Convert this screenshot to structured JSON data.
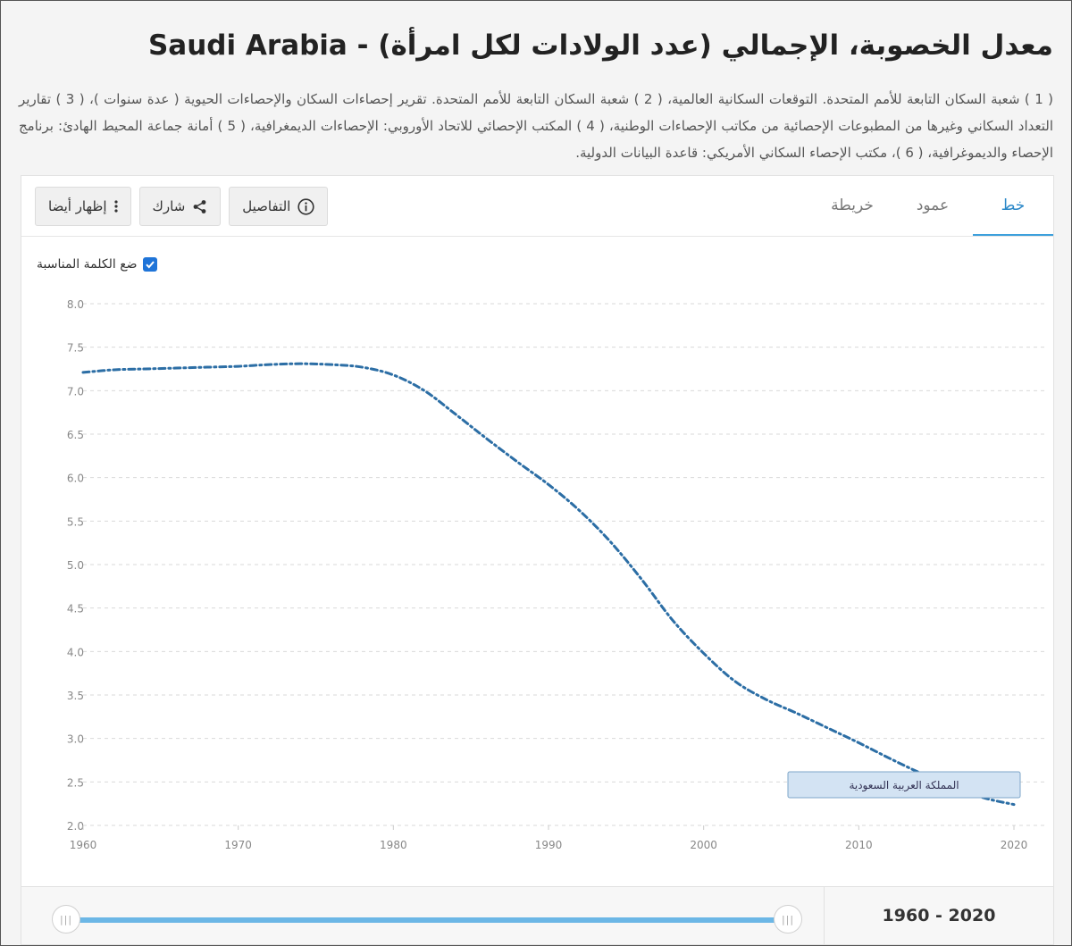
{
  "page": {
    "title": "معدل الخصوبة، الإجمالي (عدد الولادات لكل امرأة) - Saudi Arabia",
    "sources": "( 1 ) شعبة السكان التابعة للأمم المتحدة. التوقعات السكانية العالمية، ( 2 ) شعبة السكان التابعة للأمم المتحدة. تقرير إحصاءات السكان والإحصاءات الحيوية ( عدة سنوات )، ( 3 ) تقارير التعداد السكاني وغيرها من المطبوعات الإحصائية من مكاتب الإحصاءات الوطنية، ( 4 ) المكتب الإحصائي للاتحاد الأوروبي: الإحصاءات الديمغرافية، ( 5 ) أمانة جماعة المحيط الهادئ: برنامج الإحصاء والديموغرافية، ( 6 )، مكتب الإحصاء السكاني الأمريكي: قاعدة البيانات الدولية."
  },
  "tabs": [
    {
      "label": "خط",
      "active": true
    },
    {
      "label": "عمود",
      "active": false
    },
    {
      "label": "خريطة",
      "active": false
    }
  ],
  "buttons": {
    "details": "التفاصيل",
    "share": "شارك",
    "show_also": "إظهار أيضا"
  },
  "label_toggle": {
    "label": "ضع الكلمة المناسبة",
    "checked": true
  },
  "slider": {
    "range_label": "1960 - 2020",
    "start": 1960,
    "end": 2020
  },
  "colors": {
    "line": "#2c6ea5",
    "accent": "#3da0dc",
    "label_fill": "#d3e3f3"
  },
  "chart_data": {
    "type": "line",
    "title": "",
    "xlabel": "",
    "ylabel": "",
    "xlim": [
      1960,
      2020
    ],
    "ylim": [
      2.0,
      8.0
    ],
    "x_ticks": [
      1960,
      1970,
      1980,
      1990,
      2000,
      2010,
      2020
    ],
    "y_ticks": [
      "2.0",
      "2.5",
      "3.0",
      "3.5",
      "4.0",
      "4.5",
      "5.0",
      "5.5",
      "6.0",
      "6.5",
      "7.0",
      "7.5",
      "8.0"
    ],
    "grid": true,
    "line_style": "dash-dot",
    "series": [
      {
        "name": "المملكة العربية السعودية",
        "x": [
          1960,
          1962,
          1964,
          1966,
          1968,
          1970,
          1972,
          1974,
          1976,
          1978,
          1980,
          1982,
          1984,
          1986,
          1988,
          1990,
          1992,
          1994,
          1996,
          1998,
          2000,
          2002,
          2004,
          2006,
          2008,
          2010,
          2012,
          2014,
          2016,
          2018,
          2020
        ],
        "values": [
          7.21,
          7.24,
          7.25,
          7.26,
          7.27,
          7.28,
          7.3,
          7.31,
          7.3,
          7.27,
          7.18,
          7.0,
          6.73,
          6.45,
          6.18,
          5.92,
          5.62,
          5.26,
          4.83,
          4.36,
          3.98,
          3.66,
          3.45,
          3.29,
          3.12,
          2.95,
          2.77,
          2.6,
          2.45,
          2.32,
          2.24
        ]
      }
    ]
  }
}
